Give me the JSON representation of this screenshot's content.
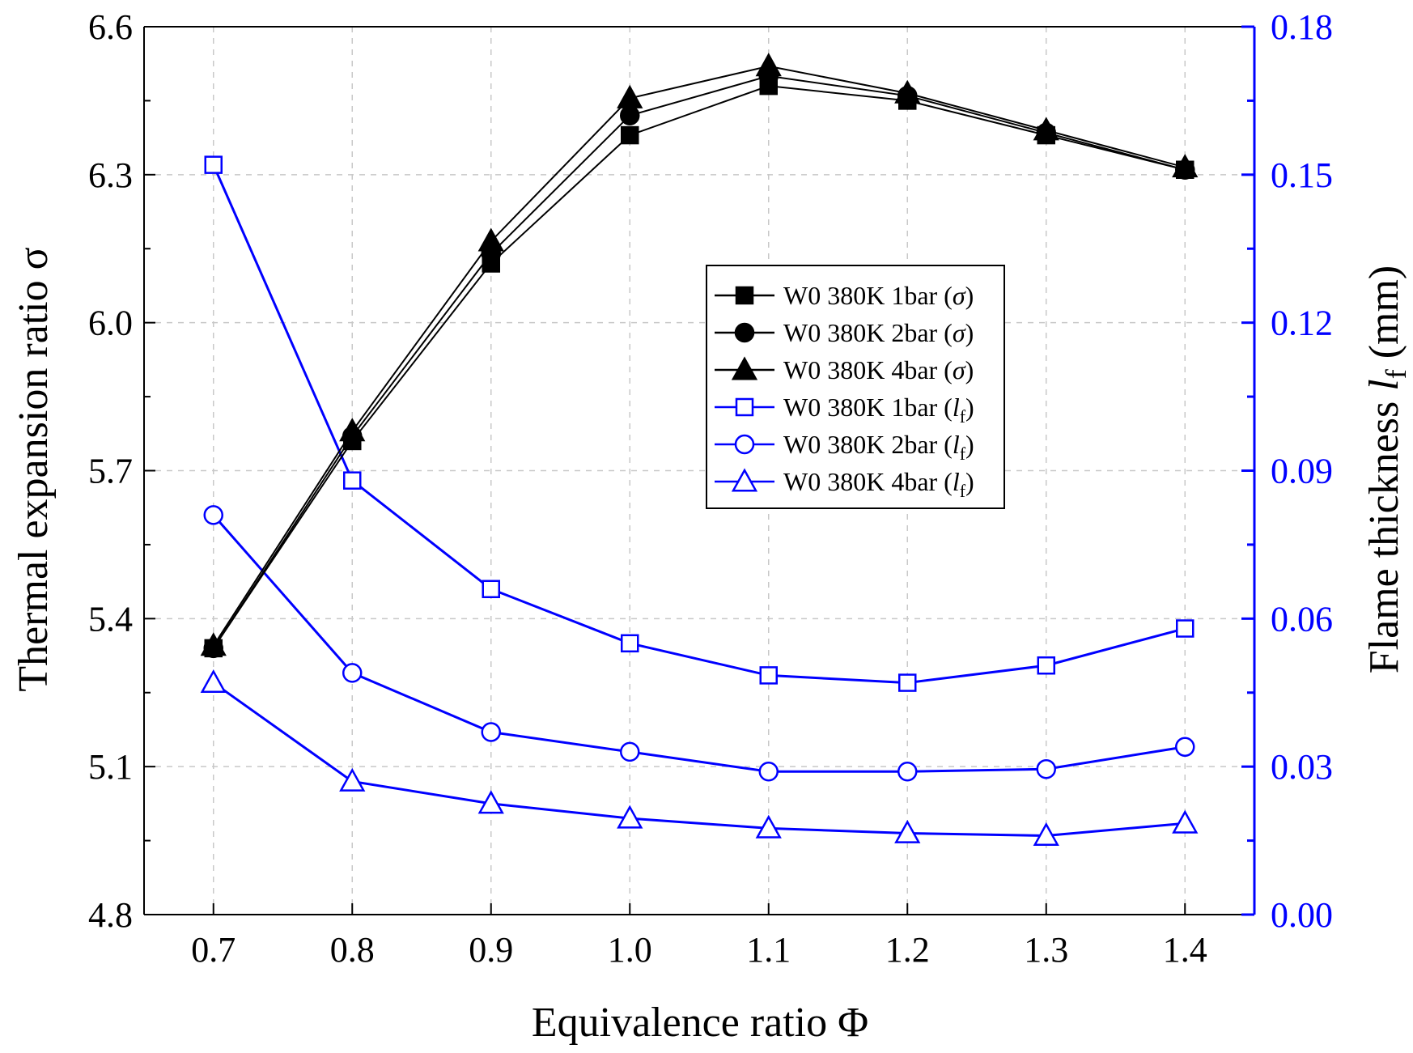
{
  "chart_data": {
    "type": "line",
    "xlabel": "Equivalence ratio Φ",
    "ylabel_left": "Thermal expansion ratio σ",
    "ylabel_right_main": "Flame thickness ",
    "ylabel_right_italic": "l",
    "ylabel_right_sub": "f",
    "ylabel_right_unit": " (mm)",
    "x": [
      0.7,
      0.8,
      0.9,
      1.0,
      1.1,
      1.2,
      1.3,
      1.4
    ],
    "x_tick_labels": [
      "0.7",
      "0.8",
      "0.9",
      "1.0",
      "1.1",
      "1.2",
      "1.3",
      "1.4"
    ],
    "xlim": [
      0.65,
      1.45
    ],
    "ylim_left": [
      4.8,
      6.6
    ],
    "ylim_right": [
      0.0,
      0.18
    ],
    "y_left_tick_labels": [
      "4.8",
      "5.1",
      "5.4",
      "5.7",
      "6.0",
      "6.3",
      "6.6"
    ],
    "y_right_tick_labels": [
      "0.00",
      "0.03",
      "0.06",
      "0.09",
      "0.12",
      "0.15",
      "0.18"
    ],
    "grid": true,
    "legend_position": "center-right",
    "colors": {
      "sigma": "#000000",
      "lf": "#0000ff"
    },
    "series": [
      {
        "name": "W0 380K 1bar",
        "quantity": "σ",
        "axis": "left",
        "marker": "square",
        "filled": true,
        "legend_prefix": "W0 380K 1bar (",
        "legend_symbol": "σ",
        "legend_sub": "",
        "legend_suffix": ")",
        "values": [
          5.34,
          5.76,
          6.12,
          6.38,
          6.48,
          6.45,
          6.38,
          6.31
        ]
      },
      {
        "name": "W0 380K 2bar",
        "quantity": "σ",
        "axis": "left",
        "marker": "circle",
        "filled": true,
        "legend_prefix": "W0 380K 2bar (",
        "legend_symbol": "σ",
        "legend_sub": "",
        "legend_suffix": ")",
        "values": [
          5.34,
          5.77,
          6.14,
          6.42,
          6.5,
          6.46,
          6.385,
          6.31
        ]
      },
      {
        "name": "W0 380K 4bar",
        "quantity": "σ",
        "axis": "left",
        "marker": "triangle",
        "filled": true,
        "legend_prefix": "W0 380K 4bar (",
        "legend_symbol": "σ",
        "legend_sub": "",
        "legend_suffix": ")",
        "values": [
          5.345,
          5.78,
          6.165,
          6.455,
          6.52,
          6.465,
          6.39,
          6.315
        ]
      },
      {
        "name": "W0 380K 1bar",
        "quantity": "lf",
        "axis": "right",
        "marker": "square",
        "filled": false,
        "legend_prefix": "W0 380K 1bar (",
        "legend_symbol": "l",
        "legend_sub": "f",
        "legend_suffix": ")",
        "values": [
          0.152,
          0.088,
          0.066,
          0.055,
          0.0485,
          0.047,
          0.0505,
          0.058
        ]
      },
      {
        "name": "W0 380K 2bar",
        "quantity": "lf",
        "axis": "right",
        "marker": "circle",
        "filled": false,
        "legend_prefix": "W0 380K 2bar (",
        "legend_symbol": "l",
        "legend_sub": "f",
        "legend_suffix": ")",
        "values": [
          0.081,
          0.049,
          0.037,
          0.033,
          0.029,
          0.029,
          0.0295,
          0.034
        ]
      },
      {
        "name": "W0 380K 4bar",
        "quantity": "lf",
        "axis": "right",
        "marker": "triangle",
        "filled": false,
        "legend_prefix": "W0 380K 4bar (",
        "legend_symbol": "l",
        "legend_sub": "f",
        "legend_suffix": ")",
        "values": [
          0.047,
          0.027,
          0.0225,
          0.0195,
          0.0175,
          0.0165,
          0.016,
          0.0185
        ]
      }
    ]
  }
}
